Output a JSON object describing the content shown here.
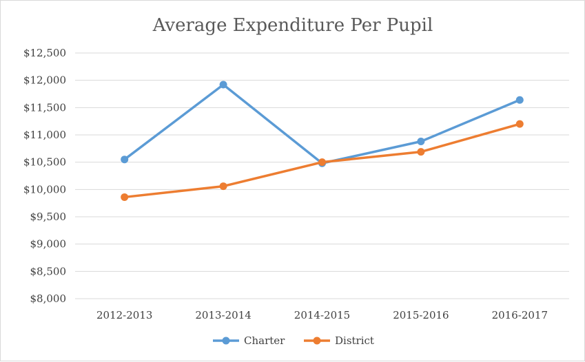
{
  "chart_data": {
    "type": "line",
    "title": "Average Expenditure Per Pupil",
    "xlabel": "",
    "ylabel": "",
    "categories": [
      "2012-2013",
      "2013-2014",
      "2014-2015",
      "2015-2016",
      "2016-2017"
    ],
    "series": [
      {
        "name": "Charter",
        "color": "#5b9bd5",
        "values": [
          10550,
          11920,
          10480,
          10880,
          11640
        ]
      },
      {
        "name": "District",
        "color": "#ed7d31",
        "values": [
          9860,
          10060,
          10500,
          10690,
          11200
        ]
      }
    ],
    "ylim": [
      8000,
      12500
    ],
    "yticks": [
      8000,
      8500,
      9000,
      9500,
      10000,
      10500,
      11000,
      11500,
      12000,
      12500
    ],
    "ytick_labels": [
      "$8,000",
      "$8,500",
      "$9,000",
      "$9,500",
      "$10,000",
      "$10,500",
      "$11,000",
      "$11,500",
      "$12,000",
      "$12,500"
    ],
    "grid": true,
    "legend_position": "bottom"
  }
}
